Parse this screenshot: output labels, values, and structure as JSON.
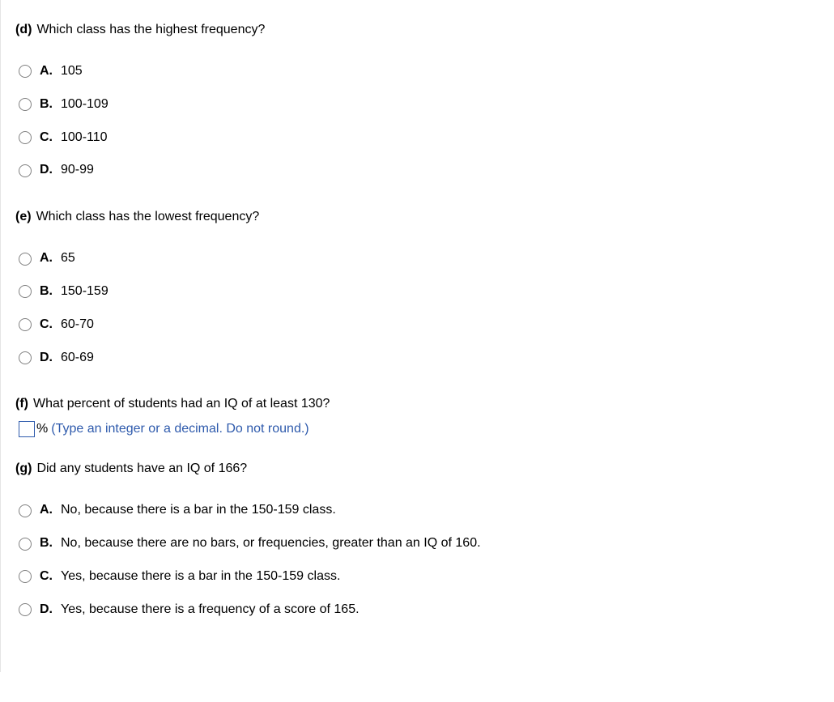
{
  "questions": {
    "d": {
      "part": "(d)",
      "text": "Which class has the highest frequency?",
      "options": {
        "A": {
          "letter": "A.",
          "text": "105"
        },
        "B": {
          "letter": "B.",
          "text": "100-109"
        },
        "C": {
          "letter": "C.",
          "text": "100-110"
        },
        "D": {
          "letter": "D.",
          "text": "90-99"
        }
      }
    },
    "e": {
      "part": "(e)",
      "text": "Which class has the lowest frequency?",
      "options": {
        "A": {
          "letter": "A.",
          "text": "65"
        },
        "B": {
          "letter": "B.",
          "text": "150-159"
        },
        "C": {
          "letter": "C.",
          "text": "60-70"
        },
        "D": {
          "letter": "D.",
          "text": "60-69"
        }
      }
    },
    "f": {
      "part": "(f)",
      "text": "What percent of students had an IQ of at least 130?",
      "suffix": "%",
      "instruction": "(Type an integer or a decimal. Do not round.)"
    },
    "g": {
      "part": "(g)",
      "text": "Did any students have an IQ of 166?",
      "options": {
        "A": {
          "letter": "A.",
          "text": "No, because there is a bar in the 150-159 class."
        },
        "B": {
          "letter": "B.",
          "text": "No, because there are no bars, or frequencies, greater than an IQ of 160."
        },
        "C": {
          "letter": "C.",
          "text": "Yes, because there is a bar in the 150-159 class."
        },
        "D": {
          "letter": "D.",
          "text": "Yes, because there is a frequency of a score of 165."
        }
      }
    }
  }
}
